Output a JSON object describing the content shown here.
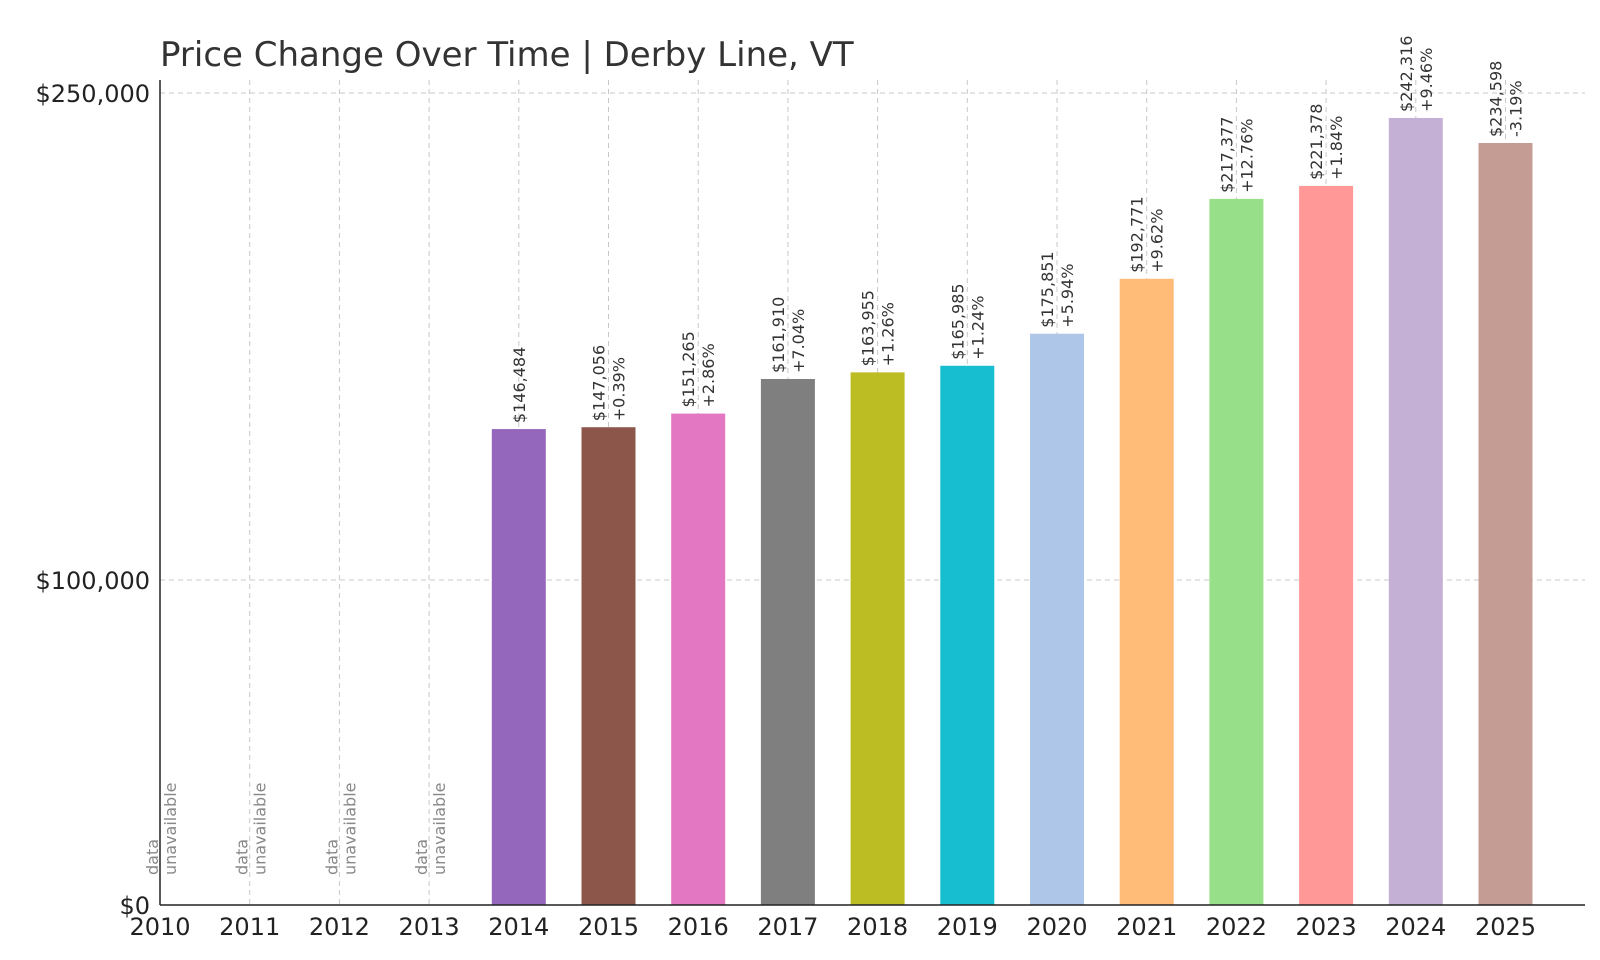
{
  "chart_data": {
    "type": "bar",
    "title": "Price Change Over Time | Derby Line, VT",
    "xlabel": "",
    "ylabel": "",
    "categories": [
      "2010",
      "2011",
      "2012",
      "2013",
      "2014",
      "2015",
      "2016",
      "2017",
      "2018",
      "2019",
      "2020",
      "2021",
      "2022",
      "2023",
      "2024",
      "2025"
    ],
    "values": [
      null,
      null,
      null,
      null,
      146484,
      147056,
      151265,
      161910,
      163955,
      165985,
      175851,
      192771,
      217377,
      221378,
      242316,
      234598
    ],
    "value_labels": [
      "",
      "",
      "",
      "",
      "$146,484",
      "$147,056",
      "$151,265",
      "$161,910",
      "$163,955",
      "$165,985",
      "$175,851",
      "$192,771",
      "$217,377",
      "$221,378",
      "$242,316",
      "$234,598"
    ],
    "change_labels": [
      "",
      "",
      "",
      "",
      "",
      "+0.39%",
      "+2.86%",
      "+7.04%",
      "+1.26%",
      "+1.24%",
      "+5.94%",
      "+9.62%",
      "+12.76%",
      "+1.84%",
      "+9.46%",
      "-3.19%"
    ],
    "unavailable_label": [
      "data",
      "unavailable"
    ],
    "colors": [
      "#9467bd",
      "#9467bd",
      "#9467bd",
      "#9467bd",
      "#9467bd",
      "#8c564b",
      "#e377c2",
      "#7f7f7f",
      "#bcbd22",
      "#17becf",
      "#aec7e8",
      "#ffbb78",
      "#98df8a",
      "#ff9896",
      "#c5b0d5",
      "#c49c94"
    ],
    "yticks": [
      0,
      100000,
      250000
    ],
    "ytick_labels": [
      "$0",
      "$100,000",
      "$250,000"
    ],
    "ylim": [
      0,
      250000
    ],
    "y_scale_note": "non-linear (compressed) y-axis: $0→$100,000 and $100,000→$250,000 segments",
    "grid": true,
    "legend": "none"
  }
}
